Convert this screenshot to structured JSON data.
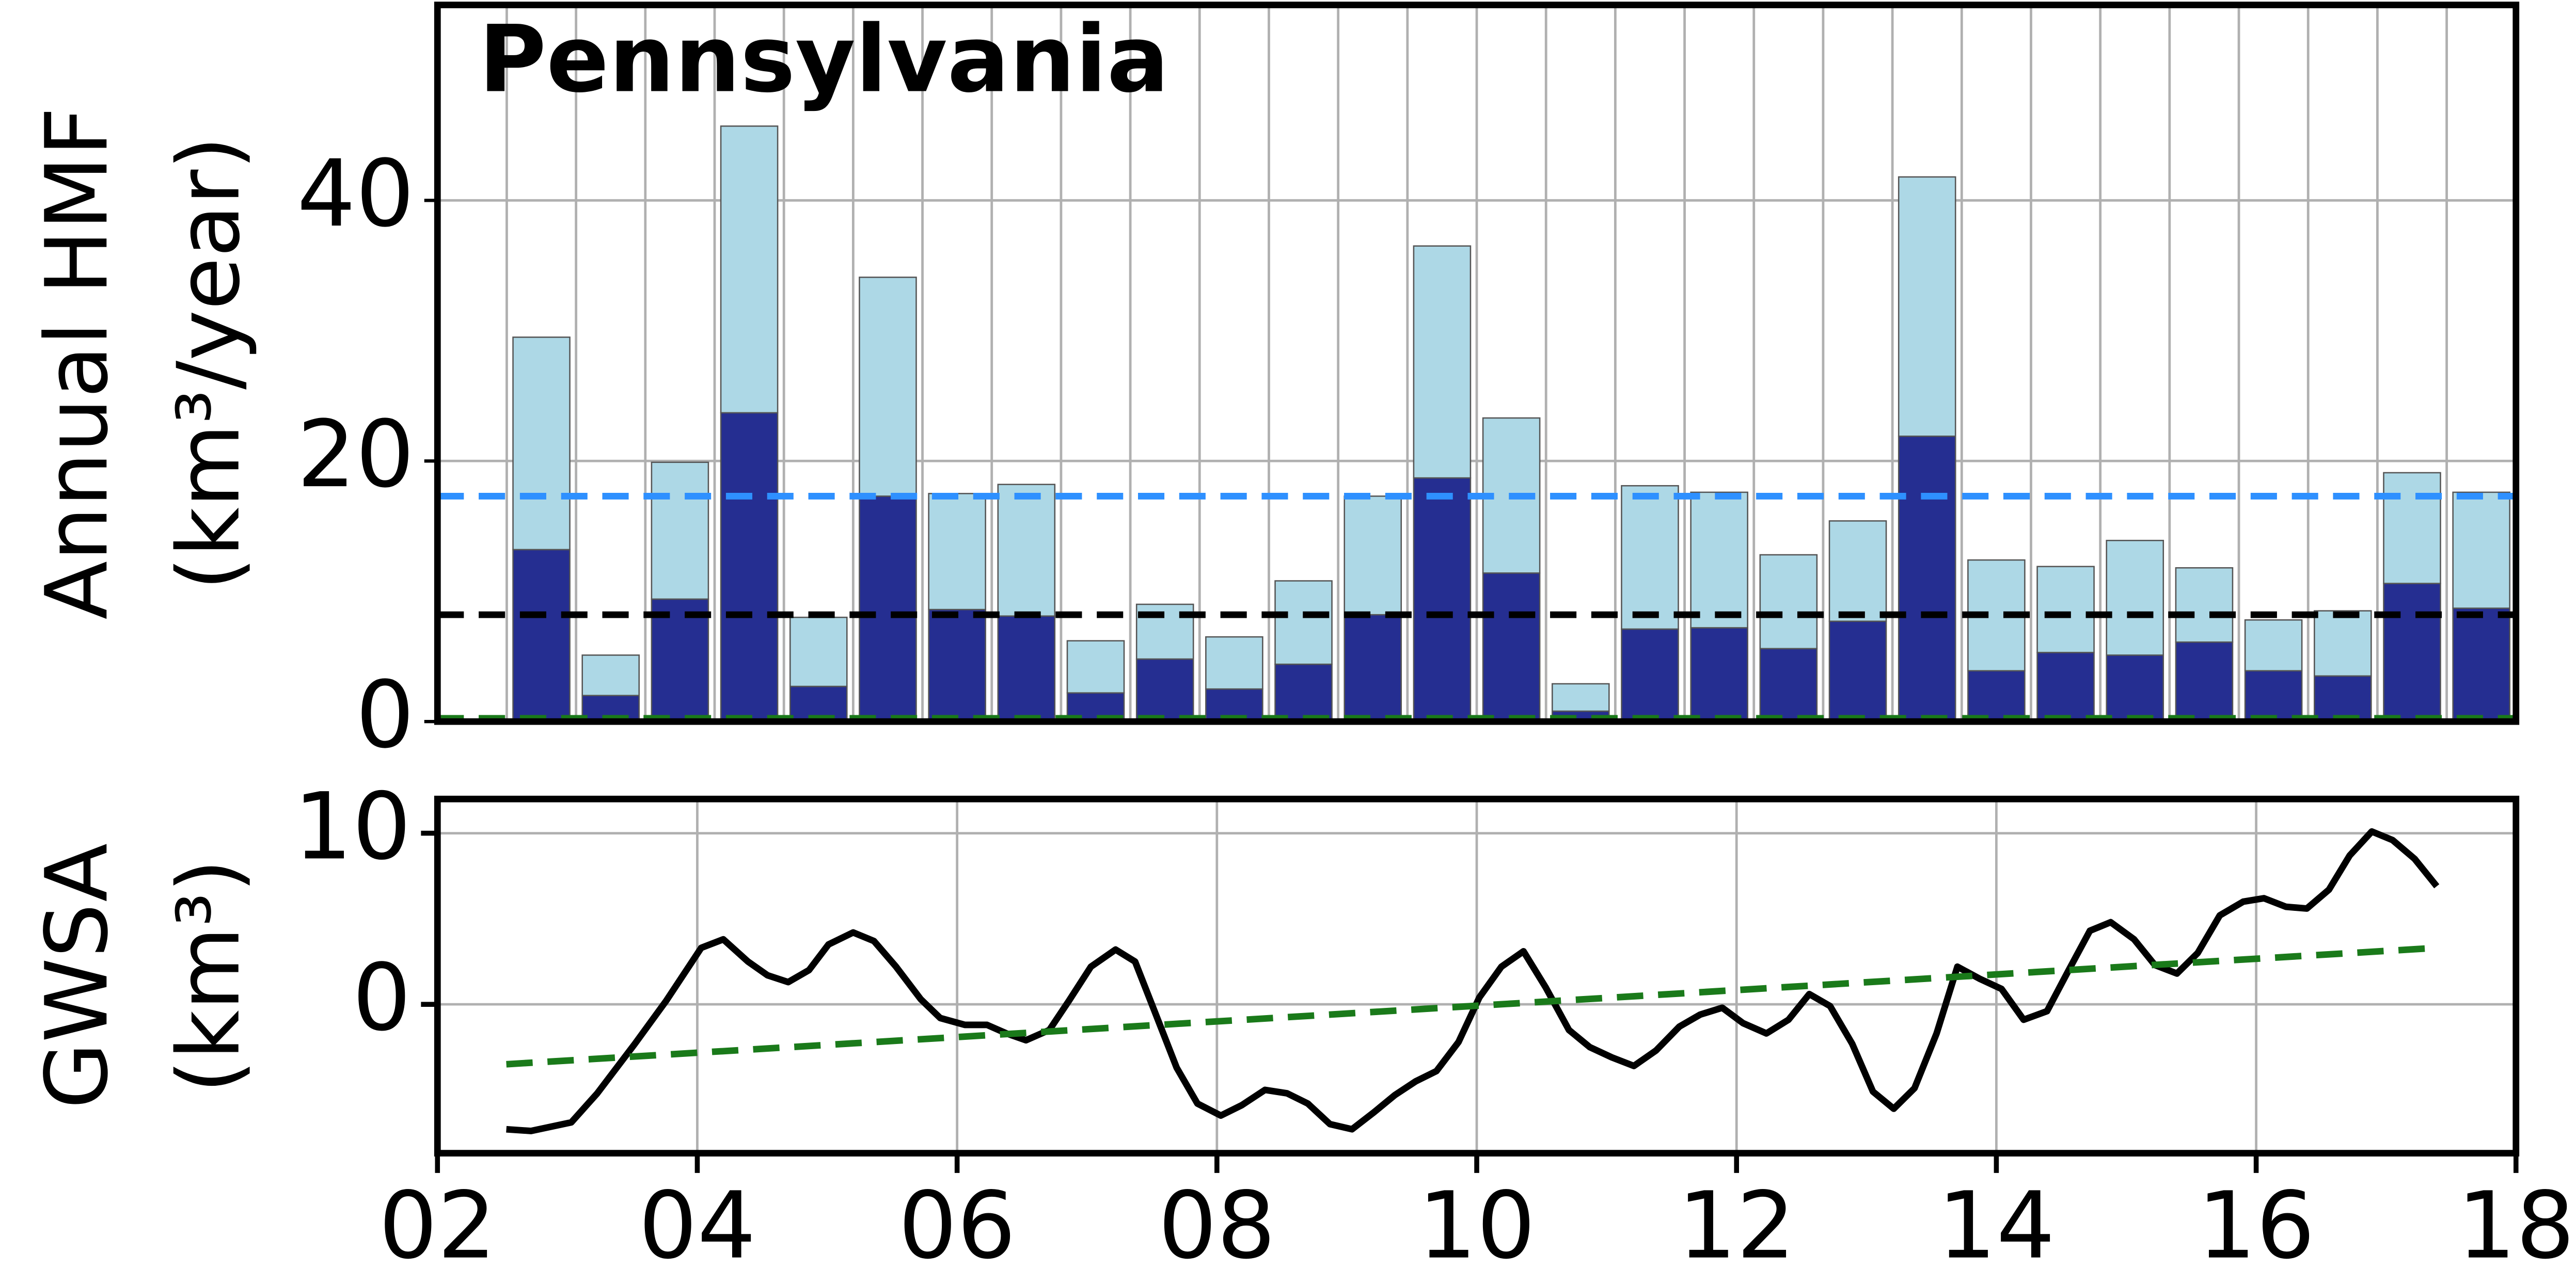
{
  "chart_data": [
    {
      "type": "bar",
      "stacked": true,
      "title": "Pennsylvania",
      "ylabel": [
        "Annual HMF",
        "(km³/year)"
      ],
      "categories": [
        null,
        null,
        null,
        null,
        null,
        null,
        null,
        null,
        null,
        null,
        null,
        null,
        null,
        null,
        null,
        null,
        null,
        null,
        null,
        null,
        null,
        null,
        null,
        null,
        null,
        null,
        null,
        null,
        null
      ],
      "series": [
        {
          "color": "#252e91",
          "values": [
            13.2,
            2.0,
            9.4,
            23.7,
            2.7,
            17.3,
            8.6,
            8.1,
            2.2,
            4.8,
            2.5,
            4.4,
            8.2,
            18.7,
            11.4,
            0.8,
            7.1,
            7.2,
            5.6,
            7.7,
            21.9,
            3.9,
            5.3,
            5.1,
            6.1,
            3.9,
            3.5,
            10.6,
            8.7
          ]
        },
        {
          "color": "#add8e6",
          "values": [
            16.3,
            3.1,
            10.5,
            22.0,
            5.3,
            16.8,
            8.9,
            10.1,
            4.0,
            4.2,
            4.0,
            6.4,
            9.1,
            17.8,
            11.9,
            2.1,
            11.0,
            10.4,
            7.2,
            7.7,
            19.9,
            8.5,
            6.6,
            8.8,
            5.7,
            3.9,
            5.0,
            8.5,
            8.9
          ]
        }
      ],
      "hlines": [
        {
          "value": 17.3,
          "color": "#2e90ff"
        },
        {
          "value": 8.2,
          "color": "#000000"
        },
        {
          "value": 0.25,
          "color": "#1a7a1a"
        }
      ],
      "ylim": [
        0,
        55
      ],
      "yticks": [
        0,
        20,
        40
      ],
      "grid": true
    },
    {
      "type": "line",
      "ylabel": [
        "GWSA",
        "(km³)"
      ],
      "x": [
        2.53,
        2.72,
        3.03,
        3.23,
        3.52,
        3.76,
        4.03,
        4.2,
        4.39,
        4.54,
        4.7,
        4.86,
        5.01,
        5.2,
        5.36,
        5.53,
        5.72,
        5.87,
        6.06,
        6.23,
        6.38,
        6.53,
        6.71,
        6.86,
        7.03,
        7.22,
        7.37,
        7.52,
        7.69,
        7.85,
        8.03,
        8.19,
        8.37,
        8.54,
        8.7,
        8.87,
        9.04,
        9.21,
        9.37,
        9.53,
        9.69,
        9.86,
        10.02,
        10.19,
        10.36,
        10.53,
        10.71,
        10.87,
        11.04,
        11.21,
        11.38,
        11.56,
        11.72,
        11.89,
        12.05,
        12.23,
        12.4,
        12.56,
        12.72,
        12.89,
        13.05,
        13.21,
        13.37,
        13.54,
        13.7,
        13.87,
        14.04,
        14.21,
        14.39,
        14.55,
        14.72,
        14.88,
        15.06,
        15.22,
        15.39,
        15.55,
        15.72,
        15.9,
        16.06,
        16.23,
        16.39,
        16.56,
        16.72,
        16.89,
        17.05,
        17.22,
        17.39
      ],
      "series": [
        {
          "color": "#000000",
          "values": [
            -7.3,
            -7.4,
            -6.9,
            -5.2,
            -2.3,
            0.2,
            3.3,
            3.8,
            2.5,
            1.7,
            1.3,
            2.0,
            3.5,
            4.2,
            3.7,
            2.2,
            0.3,
            -0.8,
            -1.2,
            -1.2,
            -1.7,
            -2.1,
            -1.5,
            0.2,
            2.2,
            3.2,
            2.5,
            -0.4,
            -3.7,
            -5.8,
            -6.5,
            -5.9,
            -5.0,
            -5.2,
            -5.8,
            -7.0,
            -7.3,
            -6.3,
            -5.3,
            -4.5,
            -3.9,
            -2.2,
            0.4,
            2.2,
            3.1,
            1.0,
            -1.5,
            -2.5,
            -3.1,
            -3.6,
            -2.7,
            -1.3,
            -0.6,
            -0.2,
            -1.1,
            -1.7,
            -0.9,
            0.6,
            -0.1,
            -2.3,
            -5.1,
            -6.1,
            -4.9,
            -1.7,
            2.2,
            1.5,
            0.9,
            -0.9,
            -0.4,
            1.9,
            4.3,
            4.8,
            3.8,
            2.3,
            1.8,
            3.0,
            5.2,
            6.0,
            6.2,
            5.7,
            5.6,
            6.7,
            8.7,
            10.1,
            9.6,
            8.5,
            6.9
          ]
        },
        {
          "color": "#1a7a1a",
          "dashed": true,
          "x": [
            2.53,
            17.39
          ],
          "values": [
            -3.5,
            3.3
          ]
        }
      ],
      "xlim": [
        2,
        18
      ],
      "xticks": [
        {
          "value": 2,
          "label": "02"
        },
        {
          "value": 4,
          "label": "04"
        },
        {
          "value": 6,
          "label": "06"
        },
        {
          "value": 8,
          "label": "08"
        },
        10,
        12,
        14,
        16,
        18
      ],
      "ylim": [
        -8.7,
        12
      ],
      "yticks": [
        0,
        10
      ],
      "grid": true
    }
  ]
}
